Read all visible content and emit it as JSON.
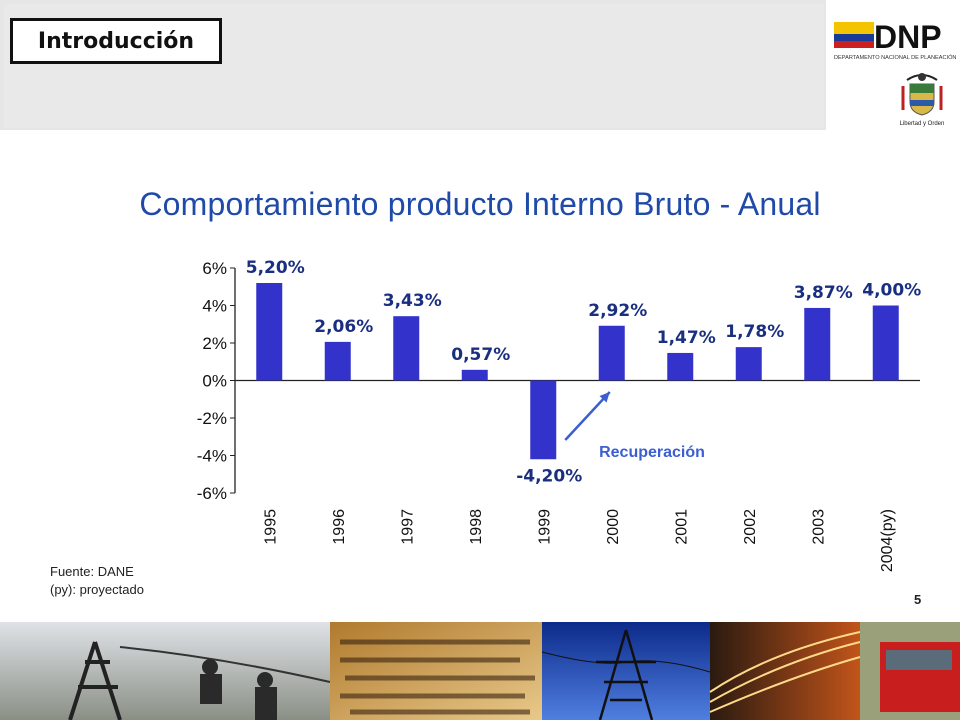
{
  "header": {
    "section_label": "Introducción",
    "logo_text": "DNP",
    "logo_subtext": "DEPARTAMENTO NACIONAL DE PLANEACIÓN",
    "shield_caption": "Libertad y Orden"
  },
  "slide": {
    "title": "Comportamiento producto Interno Bruto - Anual",
    "source_line1": "Fuente: DANE",
    "source_line2": "(py): proyectado",
    "page_number": "5"
  },
  "colors": {
    "bar": "#3333cc",
    "title": "#1f4aa8",
    "data_label": "#1a2f80",
    "annotation": "#3b5fd0"
  },
  "chart_data": {
    "type": "bar",
    "title": "",
    "xlabel": "",
    "ylabel": "",
    "categories": [
      "1995",
      "1996",
      "1997",
      "1998",
      "1999",
      "2000",
      "2001",
      "2002",
      "2003",
      "2004(py)"
    ],
    "values": [
      5.2,
      2.06,
      3.43,
      0.57,
      -4.2,
      2.92,
      1.47,
      1.78,
      3.87,
      4.0
    ],
    "data_labels": [
      "5,20%",
      "2,06%",
      "3,43%",
      "0,57%",
      "-4,20%",
      "2,92%",
      "1,47%",
      "1,78%",
      "3,87%",
      "4,00%"
    ],
    "y_ticks": [
      6,
      4,
      2,
      0,
      -2,
      -4,
      -6
    ],
    "y_tick_labels": [
      "6%",
      "4%",
      "2%",
      "0%",
      "-2%",
      "-4%",
      "-6%"
    ],
    "ylim": [
      -6,
      6
    ],
    "grid": false,
    "legend": "none",
    "annotation": {
      "text": "Recuperación",
      "arrow_from_category": "1999",
      "arrow_to_category": "2000"
    }
  },
  "photo_strip": {
    "panels": [
      "linemen-photo",
      "dictionary-photo",
      "power-tower-photo",
      "night-traffic-photo",
      "red-bus-photo"
    ]
  }
}
